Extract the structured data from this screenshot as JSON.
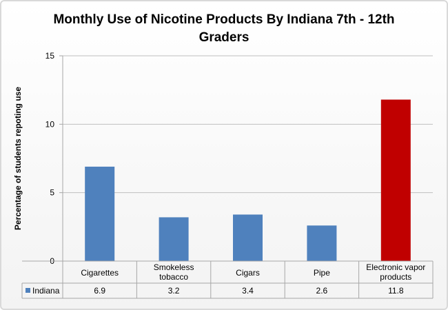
{
  "chart_data": {
    "type": "bar",
    "title": "Monthly Use of Nicotine Products By Indiana 7th - 12th Graders",
    "title_lines": [
      "Monthly Use of Nicotine Products By Indiana 7th - 12th",
      "Graders"
    ],
    "xlabel": "",
    "ylabel": "Percentage of students repoting use",
    "ylim": [
      0,
      15
    ],
    "yticks": [
      0,
      5,
      10,
      15
    ],
    "grid": true,
    "categories": [
      "Cigarettes",
      "Smokeless tobacco",
      "Cigars",
      "Pipe",
      "Electronic vapor products"
    ],
    "category_lines": [
      [
        "Cigarettes"
      ],
      [
        "Smokeless",
        "tobacco"
      ],
      [
        "Cigars"
      ],
      [
        "Pipe"
      ],
      [
        "Electronic vapor",
        "products"
      ]
    ],
    "series": [
      {
        "name": "Indiana",
        "values": [
          6.9,
          3.2,
          3.4,
          2.6,
          11.8
        ],
        "value_labels": [
          "6.9",
          "3.2",
          "3.4",
          "2.6",
          "11.8"
        ]
      }
    ],
    "colors": {
      "bar": "#4f81bd",
      "highlight_bar": "#c00000",
      "grid": "#bfbfbf"
    },
    "highlight_index": 4,
    "legend": "data-table"
  }
}
